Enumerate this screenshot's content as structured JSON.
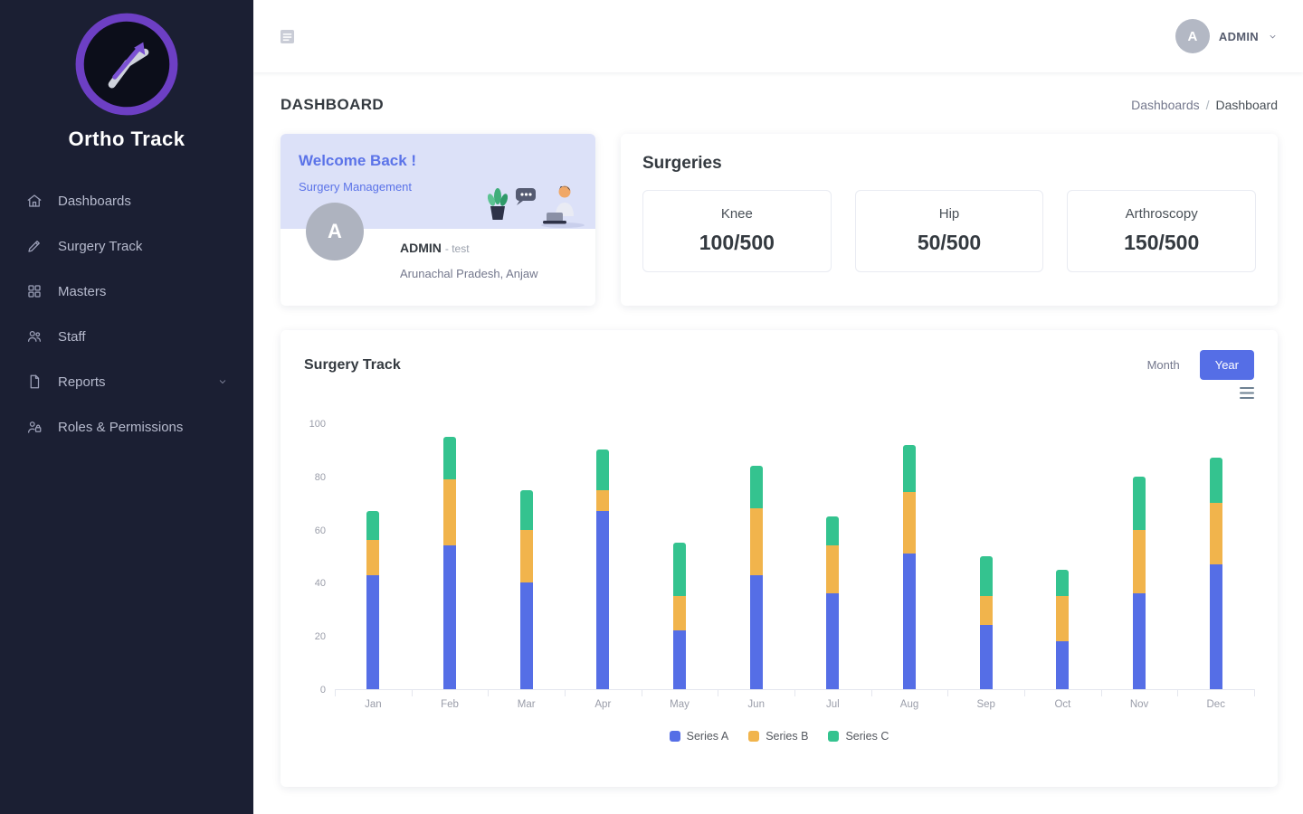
{
  "app": {
    "name": "Ortho Track"
  },
  "colors": {
    "accent": "#556ee6",
    "sidebar_bg": "#1b1f33",
    "welcome_bg": "#dce1f8",
    "series_a": "#556ee6",
    "series_b": "#f1b44c",
    "series_c": "#34c38f"
  },
  "sidebar": {
    "items": [
      {
        "label": "Dashboards",
        "icon": "home-icon"
      },
      {
        "label": "Surgery Track",
        "icon": "pencil-icon"
      },
      {
        "label": "Masters",
        "icon": "masters-icon"
      },
      {
        "label": "Staff",
        "icon": "staff-icon"
      },
      {
        "label": "Reports",
        "icon": "report-icon",
        "expandable": true
      },
      {
        "label": "Roles & Permissions",
        "icon": "roles-icon"
      }
    ]
  },
  "header": {
    "user_initial": "A",
    "user_label": "ADMIN"
  },
  "page": {
    "title": "DASHBOARD",
    "breadcrumb": {
      "parent": "Dashboards",
      "separator": "/",
      "current": "Dashboard"
    }
  },
  "welcome": {
    "greeting": "Welcome Back !",
    "subtitle": "Surgery Management",
    "user_initial": "A",
    "user_name": "ADMIN",
    "user_suffix": "- test",
    "location": "Arunachal Pradesh, Anjaw"
  },
  "surgeries": {
    "title": "Surgeries",
    "stats": [
      {
        "label": "Knee",
        "value": "100/500"
      },
      {
        "label": "Hip",
        "value": "50/500"
      },
      {
        "label": "Arthroscopy",
        "value": "150/500"
      }
    ]
  },
  "chart": {
    "title": "Surgery Track",
    "month_label": "Month",
    "year_label": "Year",
    "selected_range": "Year"
  },
  "chart_data": {
    "type": "bar",
    "stacked": true,
    "title": "Surgery Track",
    "categories": [
      "Jan",
      "Feb",
      "Mar",
      "Apr",
      "May",
      "Jun",
      "Jul",
      "Aug",
      "Sep",
      "Oct",
      "Nov",
      "Dec"
    ],
    "series": [
      {
        "name": "Series A",
        "color": "#556ee6",
        "values": [
          43,
          54,
          40,
          67,
          22,
          43,
          36,
          51,
          24,
          18,
          36,
          47
        ]
      },
      {
        "name": "Series B",
        "color": "#f1b44c",
        "values": [
          13,
          25,
          20,
          8,
          13,
          25,
          18,
          23,
          11,
          17,
          24,
          23
        ]
      },
      {
        "name": "Series C",
        "color": "#34c38f",
        "values": [
          11,
          16,
          15,
          15,
          20,
          16,
          11,
          18,
          15,
          10,
          20,
          17
        ]
      }
    ],
    "ylim": [
      0,
      100
    ],
    "yticks": [
      0,
      20,
      40,
      60,
      80,
      100
    ],
    "xlabel": "",
    "ylabel": "",
    "grid": false,
    "legend_position": "bottom"
  }
}
